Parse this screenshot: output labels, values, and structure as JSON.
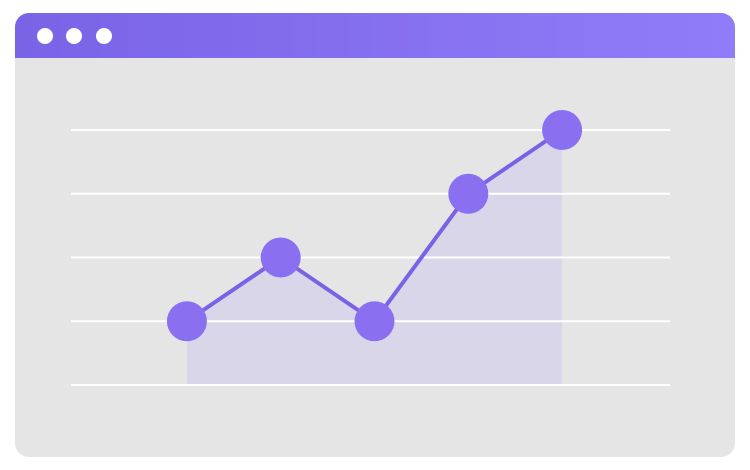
{
  "chart_data": {
    "type": "line",
    "categories": [
      null,
      null,
      null,
      null,
      null
    ],
    "values": [
      1,
      2,
      1,
      3,
      4
    ],
    "color": "#7a62e6",
    "area_color": "#d9d6ea",
    "ylim": [
      0,
      4
    ],
    "yticks": [
      0,
      1,
      2,
      3,
      4
    ],
    "grid": true
  }
}
